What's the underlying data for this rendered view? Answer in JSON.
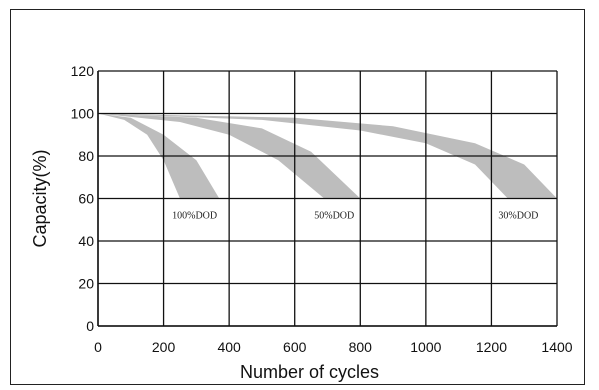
{
  "chart_data": {
    "type": "area",
    "xlabel": "Number of cycles",
    "ylabel": "Capacity(%)",
    "xlim": [
      0,
      1400
    ],
    "ylim": [
      0,
      120
    ],
    "xticks": [
      0,
      200,
      400,
      600,
      800,
      1000,
      1200,
      1400
    ],
    "yticks": [
      0,
      20,
      40,
      60,
      80,
      100,
      120
    ],
    "grid": true,
    "band_color": "#bdbdbd",
    "series": [
      {
        "name": "100%DOD",
        "upper": [
          [
            0,
            100
          ],
          [
            100,
            98
          ],
          [
            200,
            90
          ],
          [
            300,
            78
          ],
          [
            370,
            60
          ]
        ],
        "lower": [
          [
            0,
            100
          ],
          [
            80,
            97
          ],
          [
            150,
            90
          ],
          [
            200,
            78
          ],
          [
            250,
            60
          ]
        ]
      },
      {
        "name": "50%DOD",
        "upper": [
          [
            0,
            100
          ],
          [
            300,
            98
          ],
          [
            500,
            93
          ],
          [
            650,
            82
          ],
          [
            800,
            60
          ]
        ],
        "lower": [
          [
            0,
            100
          ],
          [
            250,
            96
          ],
          [
            400,
            90
          ],
          [
            550,
            78
          ],
          [
            690,
            60
          ]
        ]
      },
      {
        "name": "30%DOD",
        "upper": [
          [
            0,
            100
          ],
          [
            600,
            98
          ],
          [
            900,
            94
          ],
          [
            1150,
            86
          ],
          [
            1300,
            76
          ],
          [
            1400,
            60
          ]
        ],
        "lower": [
          [
            0,
            100
          ],
          [
            500,
            97
          ],
          [
            800,
            92
          ],
          [
            1000,
            86
          ],
          [
            1150,
            76
          ],
          [
            1250,
            60
          ]
        ]
      }
    ]
  }
}
